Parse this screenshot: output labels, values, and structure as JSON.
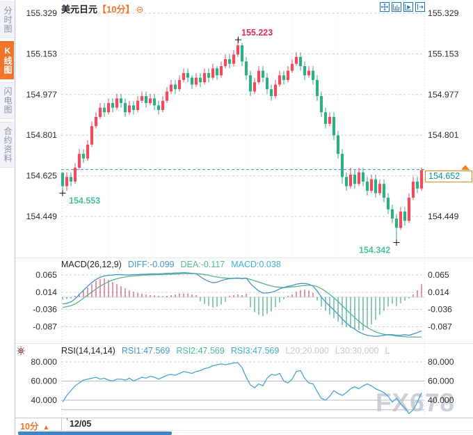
{
  "app": {
    "watermark": "FX678"
  },
  "sidebar": {
    "items": [
      {
        "label": "分时图",
        "active": false
      },
      {
        "label": "K线图",
        "active": true
      },
      {
        "label": "闪电图",
        "active": false
      },
      {
        "label": "合约资料",
        "active": false
      }
    ]
  },
  "header": {
    "symbol": "美元日元",
    "interval_tag": "【10分】",
    "collapse_icon": "⊖"
  },
  "footer": {
    "interval_label": "10分",
    "interval_arrow": "▲",
    "date_label": "12/05"
  },
  "price_box": {
    "value": "154.652"
  },
  "macd_header": {
    "name": "MACD(26,12,9)",
    "diff": "DIFF:-0.099",
    "dea": "DEA:-0.117",
    "macd": "MACD:0.038"
  },
  "rsi_header": {
    "name": "RSI(14,14,14)",
    "rsi1": "RSI1:47.569",
    "rsi2": "RSI2:47.569",
    "rsi3": "RSI3:47.569",
    "l20": "L20:20.000",
    "l30": "L30:30.000",
    "l_trunc": "L"
  },
  "colors": {
    "up": "#ee4b5f",
    "down": "#2fad85",
    "ann_red": "#d6305c",
    "ann_green": "#4cc0a2",
    "diff_line": "#4796d2",
    "dea_line": "#58b586",
    "rsi_line": "#45a6d7",
    "hist_up": "#e0506a",
    "hist_down": "#3fae8c",
    "grid": "#ccd0da",
    "grid_solid": "#b9bdc6",
    "zero_line": "#cfd3da",
    "vgrid": "#e9ebf2",
    "edge": "#d6dae4",
    "cur_price_line": "#2e90ec",
    "axis_text": "#2b2f36",
    "cross": "#15181d",
    "accent_orange": "#f0742a",
    "toolbar_blue": "#1b79c8"
  },
  "chart_data": [
    {
      "type": "candlestick",
      "title": "美元日元 10分",
      "x_axis_labels": [
        "12/05"
      ],
      "y_axis_labels": [
        "155.329",
        "155.153",
        "154.977",
        "154.801",
        "154.625",
        "154.449"
      ],
      "current_price": 154.652,
      "annotations": {
        "high": {
          "label": "155.223",
          "index": 42,
          "value": 155.223
        },
        "low_left": {
          "label": "154.553",
          "index": 0,
          "value": 154.553
        },
        "low_right": {
          "label": "154.342",
          "index": 80,
          "value": 154.342
        }
      },
      "ohlc": [
        [
          154.638,
          154.642,
          154.553,
          154.58
        ],
        [
          154.58,
          154.64,
          154.56,
          154.62
        ],
        [
          154.62,
          154.64,
          154.58,
          154.6
        ],
        [
          154.6,
          154.68,
          154.59,
          154.66
        ],
        [
          154.66,
          154.74,
          154.65,
          154.72
        ],
        [
          154.72,
          154.74,
          154.68,
          154.7
        ],
        [
          154.7,
          154.78,
          154.69,
          154.76
        ],
        [
          154.76,
          154.86,
          154.75,
          154.84
        ],
        [
          154.84,
          154.9,
          154.83,
          154.88
        ],
        [
          154.88,
          154.94,
          154.87,
          154.92
        ],
        [
          154.92,
          154.94,
          154.88,
          154.9
        ],
        [
          154.9,
          154.96,
          154.89,
          154.94
        ],
        [
          154.94,
          154.96,
          154.9,
          154.92
        ],
        [
          154.92,
          154.98,
          154.91,
          154.96
        ],
        [
          154.96,
          154.98,
          154.92,
          154.94
        ],
        [
          154.94,
          154.96,
          154.88,
          154.9
        ],
        [
          154.9,
          154.95,
          154.89,
          154.93
        ],
        [
          154.93,
          154.95,
          154.89,
          154.91
        ],
        [
          154.91,
          154.97,
          154.9,
          154.95
        ],
        [
          154.95,
          154.99,
          154.94,
          154.97
        ],
        [
          154.97,
          154.99,
          154.92,
          154.94
        ],
        [
          154.94,
          154.98,
          154.93,
          154.96
        ],
        [
          154.96,
          154.98,
          154.91,
          154.93
        ],
        [
          154.93,
          154.95,
          154.89,
          154.91
        ],
        [
          154.91,
          154.97,
          154.9,
          154.95
        ],
        [
          154.95,
          155.01,
          154.94,
          154.99
        ],
        [
          154.99,
          155.04,
          154.98,
          155.02
        ],
        [
          155.02,
          155.04,
          154.98,
          155.0
        ],
        [
          155.0,
          155.06,
          154.99,
          155.04
        ],
        [
          155.04,
          155.09,
          155.03,
          155.07
        ],
        [
          155.07,
          155.09,
          155.03,
          155.05
        ],
        [
          155.05,
          155.06,
          155.0,
          155.02
        ],
        [
          155.02,
          155.07,
          155.01,
          155.05
        ],
        [
          155.05,
          155.07,
          155.01,
          155.03
        ],
        [
          155.03,
          155.09,
          155.02,
          155.07
        ],
        [
          155.07,
          155.09,
          155.03,
          155.05
        ],
        [
          155.05,
          155.11,
          155.04,
          155.09
        ],
        [
          155.09,
          155.1,
          155.04,
          155.06
        ],
        [
          155.06,
          155.12,
          155.05,
          155.1
        ],
        [
          155.1,
          155.15,
          155.09,
          155.13
        ],
        [
          155.13,
          155.15,
          155.09,
          155.11
        ],
        [
          155.11,
          155.17,
          155.1,
          155.15
        ],
        [
          155.15,
          155.223,
          155.14,
          155.19
        ],
        [
          155.19,
          155.2,
          155.1,
          155.12
        ],
        [
          155.12,
          155.14,
          155.04,
          155.06
        ],
        [
          155.06,
          155.08,
          154.97,
          154.99
        ],
        [
          154.99,
          155.05,
          154.98,
          155.03
        ],
        [
          155.03,
          155.1,
          155.02,
          155.08
        ],
        [
          155.08,
          155.1,
          155.03,
          155.05
        ],
        [
          155.05,
          155.07,
          154.98,
          155.0
        ],
        [
          155.0,
          155.02,
          154.95,
          154.97
        ],
        [
          154.97,
          155.04,
          154.96,
          155.02
        ],
        [
          155.02,
          155.08,
          155.01,
          155.06
        ],
        [
          155.06,
          155.08,
          155.02,
          155.04
        ],
        [
          155.04,
          155.1,
          155.03,
          155.08
        ],
        [
          155.08,
          155.13,
          155.07,
          155.11
        ],
        [
          155.11,
          155.16,
          155.1,
          155.14
        ],
        [
          155.14,
          155.16,
          155.08,
          155.1
        ],
        [
          155.1,
          155.12,
          155.04,
          155.06
        ],
        [
          155.06,
          155.1,
          155.05,
          155.08
        ],
        [
          155.08,
          155.1,
          155.02,
          155.04
        ],
        [
          155.04,
          155.06,
          154.95,
          154.97
        ],
        [
          154.97,
          154.99,
          154.88,
          154.9
        ],
        [
          154.9,
          154.92,
          154.83,
          154.85
        ],
        [
          154.85,
          154.9,
          154.84,
          154.88
        ],
        [
          154.88,
          154.9,
          154.78,
          154.8
        ],
        [
          154.8,
          154.82,
          154.7,
          154.72
        ],
        [
          154.72,
          154.74,
          154.59,
          154.62
        ],
        [
          154.62,
          154.64,
          154.56,
          154.58
        ],
        [
          154.58,
          154.66,
          154.57,
          154.63
        ],
        [
          154.63,
          154.65,
          154.57,
          154.59
        ],
        [
          154.59,
          154.66,
          154.58,
          154.64
        ],
        [
          154.64,
          154.66,
          154.58,
          154.6
        ],
        [
          154.6,
          154.62,
          154.54,
          154.56
        ],
        [
          154.56,
          154.63,
          154.55,
          154.61
        ],
        [
          154.61,
          154.63,
          154.53,
          154.55
        ],
        [
          154.55,
          154.61,
          154.54,
          154.59
        ],
        [
          154.59,
          154.61,
          154.51,
          154.53
        ],
        [
          154.53,
          154.55,
          154.46,
          154.48
        ],
        [
          154.48,
          154.5,
          154.42,
          154.44
        ],
        [
          154.44,
          154.46,
          154.342,
          154.4
        ],
        [
          154.4,
          154.49,
          154.39,
          154.47
        ],
        [
          154.47,
          154.49,
          154.41,
          154.43
        ],
        [
          154.43,
          154.55,
          154.42,
          154.53
        ],
        [
          154.53,
          154.62,
          154.52,
          154.6
        ],
        [
          154.6,
          154.62,
          154.55,
          154.57
        ],
        [
          154.57,
          154.66,
          154.56,
          154.65
        ]
      ]
    },
    {
      "type": "bar+line",
      "name": "MACD(26,12,9)",
      "y_axis_labels": [
        "0.065",
        "0.014",
        "-0.036",
        "-0.087"
      ],
      "last": {
        "diff": -0.099,
        "dea": -0.117,
        "macd": 0.038
      },
      "hist": [
        -0.008,
        -0.006,
        -0.004,
        0.004,
        0.01,
        0.018,
        0.028,
        0.038,
        0.048,
        0.053,
        0.055,
        0.05,
        0.044,
        0.038,
        0.032,
        0.026,
        0.02,
        0.016,
        0.012,
        0.01,
        0.008,
        0.006,
        0.005,
        0.004,
        0.003,
        0.004,
        0.006,
        0.008,
        0.01,
        0.011,
        0.01,
        0.008,
        0.006,
        -0.012,
        -0.02,
        -0.026,
        -0.03,
        -0.028,
        -0.022,
        -0.014,
        0.004,
        0.006,
        0.008,
        0.006,
        0.01,
        -0.03,
        -0.044,
        -0.052,
        -0.056,
        -0.05,
        -0.042,
        -0.03,
        -0.016,
        -0.006,
        0.004,
        0.008,
        0.016,
        0.02,
        0.022,
        0.02,
        0.012,
        -0.01,
        -0.028,
        -0.04,
        -0.052,
        -0.062,
        -0.072,
        -0.082,
        -0.088,
        -0.09,
        -0.094,
        -0.096,
        -0.098,
        -0.09,
        -0.08,
        -0.066,
        -0.052,
        -0.04,
        -0.028,
        -0.02,
        -0.026,
        -0.018,
        -0.01,
        -0.004,
        0.008,
        0.02,
        0.038
      ],
      "diff": [
        -0.02,
        -0.018,
        -0.014,
        -0.005,
        0.008,
        0.02,
        0.032,
        0.043,
        0.052,
        0.058,
        0.062,
        0.064,
        0.065,
        0.066,
        0.066,
        0.065,
        0.065,
        0.066,
        0.066,
        0.067,
        0.067,
        0.068,
        0.068,
        0.068,
        0.069,
        0.07,
        0.07,
        0.071,
        0.071,
        0.072,
        0.071,
        0.07,
        0.069,
        0.06,
        0.052,
        0.046,
        0.042,
        0.044,
        0.048,
        0.052,
        0.054,
        0.055,
        0.056,
        0.054,
        0.056,
        0.04,
        0.028,
        0.018,
        0.012,
        0.012,
        0.014,
        0.018,
        0.024,
        0.028,
        0.032,
        0.034,
        0.038,
        0.04,
        0.04,
        0.038,
        0.032,
        0.018,
        0.0,
        -0.014,
        -0.026,
        -0.038,
        -0.05,
        -0.064,
        -0.076,
        -0.086,
        -0.094,
        -0.102,
        -0.108,
        -0.112,
        -0.114,
        -0.115,
        -0.114,
        -0.112,
        -0.11,
        -0.11,
        -0.112,
        -0.112,
        -0.11,
        -0.112,
        -0.108,
        -0.104,
        -0.099
      ],
      "dea": [
        -0.03,
        -0.028,
        -0.025,
        -0.02,
        -0.012,
        -0.003,
        0.006,
        0.015,
        0.024,
        0.032,
        0.039,
        0.045,
        0.05,
        0.054,
        0.057,
        0.059,
        0.061,
        0.062,
        0.063,
        0.064,
        0.065,
        0.065,
        0.066,
        0.066,
        0.066,
        0.067,
        0.067,
        0.068,
        0.068,
        0.069,
        0.069,
        0.069,
        0.069,
        0.068,
        0.066,
        0.064,
        0.061,
        0.059,
        0.057,
        0.056,
        0.055,
        0.055,
        0.055,
        0.055,
        0.055,
        0.052,
        0.048,
        0.044,
        0.04,
        0.036,
        0.033,
        0.03,
        0.029,
        0.028,
        0.029,
        0.03,
        0.031,
        0.033,
        0.034,
        0.035,
        0.034,
        0.031,
        0.025,
        0.017,
        0.008,
        -0.002,
        -0.013,
        -0.025,
        -0.037,
        -0.049,
        -0.06,
        -0.071,
        -0.081,
        -0.089,
        -0.096,
        -0.102,
        -0.106,
        -0.109,
        -0.111,
        -0.112,
        -0.114,
        -0.115,
        -0.116,
        -0.117,
        -0.117,
        -0.117,
        -0.117
      ]
    },
    {
      "type": "line",
      "name": "RSI(14,14,14)",
      "y_axis_labels": [
        "80.000",
        "60.000",
        "40.000"
      ],
      "levels": {
        "l20": 20,
        "l30": 30
      },
      "last": {
        "rsi1": 47.569,
        "rsi2": 47.569,
        "rsi3": 47.569
      },
      "rsi": [
        38,
        45,
        50,
        55,
        58,
        61,
        62,
        63,
        64,
        62,
        63,
        61,
        60,
        62,
        62,
        61,
        63,
        60,
        62,
        64,
        63,
        65,
        64,
        62,
        64,
        66,
        67,
        66,
        68,
        70,
        69,
        68,
        70,
        71,
        73,
        74,
        76,
        77,
        78,
        77,
        78,
        79,
        79,
        74,
        64,
        56,
        53,
        57,
        55,
        63,
        67,
        66,
        68,
        60,
        58,
        62,
        70,
        71,
        63,
        58,
        57,
        49,
        42,
        40,
        44,
        50,
        47,
        45,
        48,
        52,
        54,
        52,
        55,
        57,
        55,
        52,
        50,
        48,
        44,
        38,
        42,
        36,
        32,
        26,
        30,
        38,
        47.6
      ]
    }
  ]
}
